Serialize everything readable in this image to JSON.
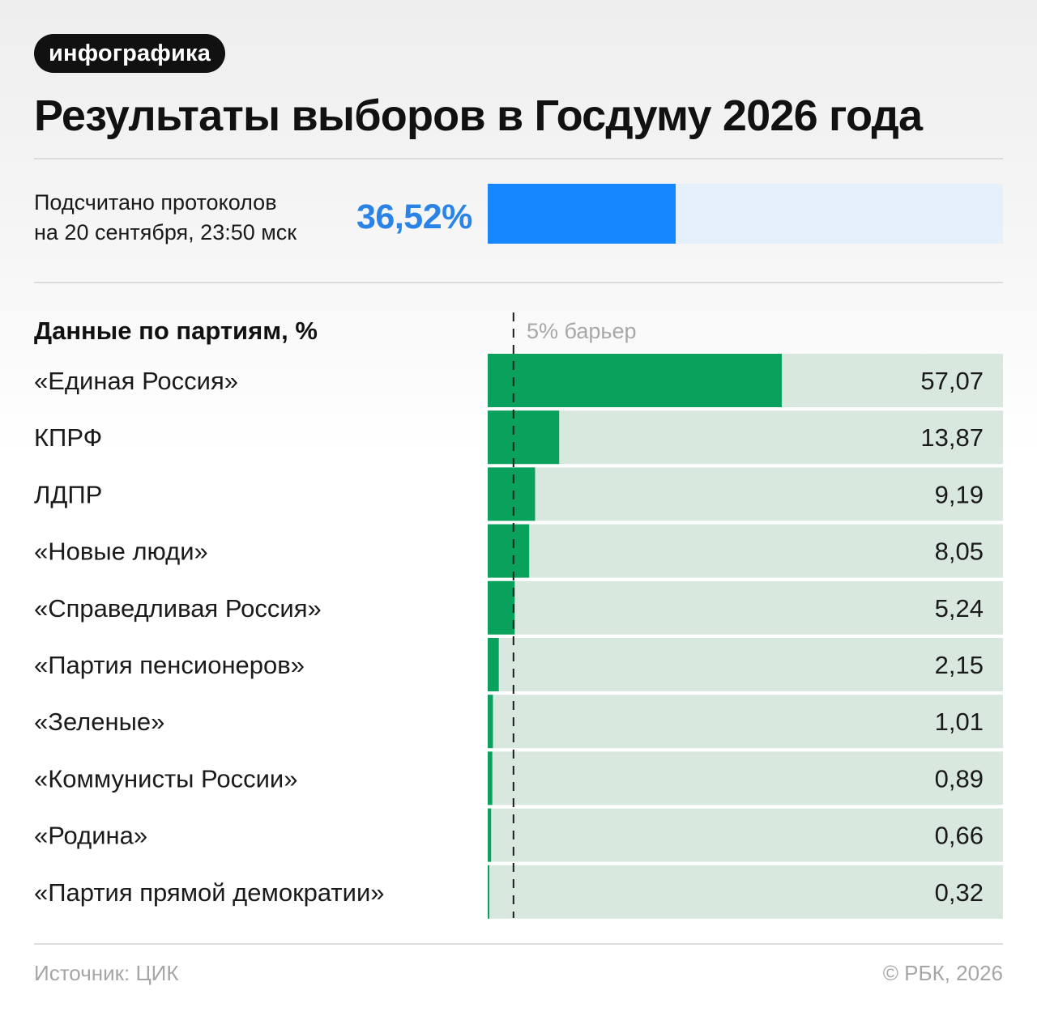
{
  "header": {
    "tag": "инфографика",
    "title": "Результаты выборов в Госдуму 2026 года"
  },
  "progress": {
    "label_line1": "Подсчитано протоколов",
    "label_line2": "на 20 сентября, 23:50 мск",
    "value_text": "36,52%",
    "value": 36.52
  },
  "colors": {
    "progress_fill": "#1787ff",
    "progress_track": "#e6f0fb",
    "progress_text": "#2a84e8",
    "bar_fill": "#0aa15c",
    "bar_track": "#d9e8de"
  },
  "chart_data": {
    "type": "bar",
    "orientation": "horizontal",
    "title": "Данные по партиям, %",
    "categories": [
      "«Единая Россия»",
      "КПРФ",
      "ЛДПР",
      "«Новые люди»",
      "«Справедливая Россия»",
      "«Партия пенсионеров»",
      "«Зеленые»",
      "«Коммунисты России»",
      "«Родина»",
      "«Партия прямой демократии»"
    ],
    "values": [
      57.07,
      13.87,
      9.19,
      8.05,
      5.24,
      2.15,
      1.01,
      0.89,
      0.66,
      0.32
    ],
    "value_labels": [
      "57,07",
      "13,87",
      "9,19",
      "8,05",
      "5,24",
      "2,15",
      "1,01",
      "0,89",
      "0,66",
      "0,32"
    ],
    "xlim": [
      0,
      100
    ],
    "threshold": {
      "value": 5,
      "label": "5% барьер"
    }
  },
  "footer": {
    "source": "Источник: ЦИК",
    "copyright": "© РБК, 2026"
  }
}
